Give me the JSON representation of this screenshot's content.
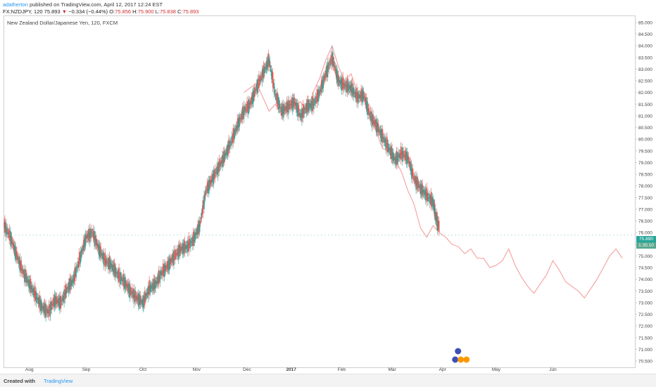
{
  "header": {
    "username": "adatherton",
    "published": "published on TradingView.com, April 12, 2017 12:24 EST",
    "symbol": "FX:NZDJPY, 120",
    "last": "75.893",
    "arrow": "▼",
    "change": "−0.334 (−0.44%)",
    "o_label": "O:",
    "o_val": "75.856",
    "h_label": "H:",
    "h_val": "75.900",
    "l_label": "L:",
    "l_val": "75.838",
    "c_label": "C:",
    "c_val": "75.893"
  },
  "instrument_title": "New Zealand Dollar/Japanese Yen, 120, FXCM",
  "price_tag": {
    "price": "75.890",
    "countdown": "1:35:10"
  },
  "footer": {
    "created": "Created with",
    "brand": "TradingView"
  },
  "colors": {
    "up": "#26a69a",
    "down": "#ef5350",
    "ghost": "#f4a7a5",
    "axis": "#cfcfcf",
    "tag": "#26a69a"
  },
  "chart_data": {
    "type": "line",
    "title": "New Zealand Dollar/Japanese Yen, 120, FXCM",
    "ylim": [
      70.5,
      85.0
    ],
    "y_ticks": [
      "85.000",
      "84.500",
      "84.000",
      "83.500",
      "83.000",
      "82.500",
      "82.000",
      "81.500",
      "81.000",
      "80.500",
      "80.000",
      "79.500",
      "79.000",
      "78.500",
      "78.000",
      "77.500",
      "77.000",
      "76.500",
      "76.000",
      "75.500",
      "75.000",
      "74.500",
      "74.000",
      "73.500",
      "73.000",
      "72.500",
      "72.000",
      "71.500",
      "71.000",
      "70.500"
    ],
    "x_ticks": [
      "Aug",
      "Sep",
      "Oct",
      "Nov",
      "Dec",
      "2017",
      "Feb",
      "Mar",
      "Apr",
      "May",
      "Jun"
    ],
    "x_tick_pos": [
      0.04,
      0.13,
      0.22,
      0.305,
      0.385,
      0.455,
      0.535,
      0.615,
      0.695,
      0.78,
      0.87
    ],
    "series": [
      {
        "kind": "price",
        "x": [
          0,
          0.01,
          0.02,
          0.03,
          0.04,
          0.05,
          0.06,
          0.07,
          0.08,
          0.09,
          0.1,
          0.11,
          0.12,
          0.13,
          0.14,
          0.15,
          0.16,
          0.17,
          0.18,
          0.19,
          0.2,
          0.21,
          0.22,
          0.23,
          0.24,
          0.25,
          0.26,
          0.27,
          0.28,
          0.29,
          0.3,
          0.31,
          0.32,
          0.33,
          0.34,
          0.35,
          0.36,
          0.37,
          0.38,
          0.39,
          0.4,
          0.41,
          0.42,
          0.43,
          0.44,
          0.45,
          0.46,
          0.47,
          0.48,
          0.49,
          0.5,
          0.51,
          0.52,
          0.53,
          0.54,
          0.55,
          0.56,
          0.57,
          0.58,
          0.59,
          0.6,
          0.61,
          0.62,
          0.63,
          0.64,
          0.65,
          0.66,
          0.67,
          0.68,
          0.685,
          0.69
        ],
        "y": [
          76.3,
          75.8,
          75.0,
          74.3,
          73.8,
          73.3,
          72.8,
          72.6,
          73.1,
          73.0,
          73.6,
          74.0,
          74.9,
          75.8,
          76.0,
          75.3,
          74.8,
          74.6,
          74.2,
          73.9,
          73.5,
          73.2,
          73.0,
          73.6,
          73.8,
          74.3,
          74.6,
          75.0,
          75.3,
          75.4,
          75.7,
          76.3,
          77.8,
          78.3,
          78.8,
          79.3,
          79.9,
          80.6,
          81.2,
          81.5,
          82.2,
          82.8,
          83.4,
          81.9,
          81.2,
          81.4,
          81.6,
          81.0,
          81.4,
          81.5,
          82.0,
          82.8,
          83.5,
          82.5,
          82.3,
          82.2,
          81.8,
          81.9,
          81.0,
          80.6,
          80.1,
          79.6,
          79.1,
          79.4,
          79.2,
          78.3,
          77.9,
          77.6,
          77.3,
          76.6,
          76.2
        ]
      },
      {
        "kind": "projection",
        "x": [
          0.38,
          0.39,
          0.4,
          0.41,
          0.42,
          0.43,
          0.44,
          0.45,
          0.46,
          0.47,
          0.48,
          0.49,
          0.5,
          0.51,
          0.52,
          0.53,
          0.54,
          0.55,
          0.56,
          0.57,
          0.58,
          0.59,
          0.6,
          0.61,
          0.62,
          0.63,
          0.64,
          0.65,
          0.66,
          0.67,
          0.68,
          0.69,
          0.7,
          0.71,
          0.72,
          0.73,
          0.74,
          0.75,
          0.76,
          0.77,
          0.78,
          0.79,
          0.8,
          0.81,
          0.82,
          0.83,
          0.84,
          0.85,
          0.86,
          0.87,
          0.88,
          0.89,
          0.9,
          0.91,
          0.92,
          0.93,
          0.94,
          0.95,
          0.96,
          0.97,
          0.98
        ],
        "y": [
          82.0,
          82.2,
          82.4,
          81.8,
          81.2,
          81.5,
          81.0,
          81.3,
          81.4,
          81.6,
          81.2,
          82.0,
          82.6,
          83.4,
          84.0,
          83.1,
          82.5,
          82.8,
          82.0,
          81.7,
          81.4,
          80.3,
          79.6,
          79.5,
          79.1,
          78.6,
          77.8,
          77.2,
          76.2,
          75.8,
          76.3,
          76.0,
          75.8,
          75.5,
          75.4,
          75.1,
          75.3,
          74.9,
          74.9,
          74.5,
          74.6,
          74.8,
          75.3,
          74.6,
          74.1,
          73.7,
          73.4,
          73.8,
          74.2,
          74.8,
          74.4,
          73.9,
          73.7,
          73.5,
          73.2,
          73.6,
          74.0,
          74.5,
          75.0,
          75.3,
          74.9
        ]
      }
    ]
  }
}
